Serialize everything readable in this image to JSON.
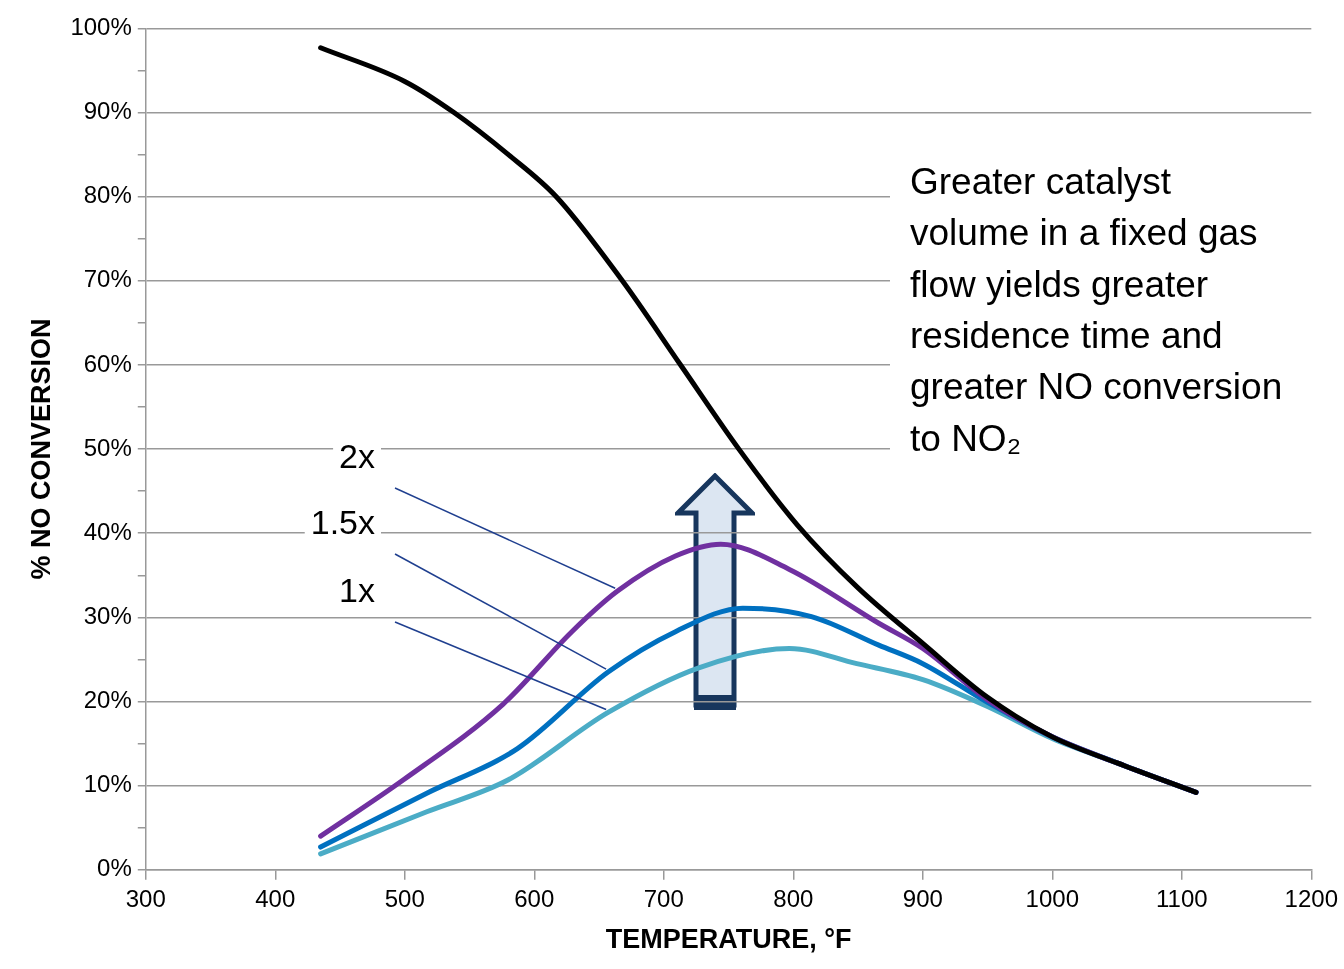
{
  "chart_data": {
    "type": "line",
    "xlabel": "TEMPERATURE, °F",
    "ylabel": "% NO CONVERSION",
    "annotations": [
      "Greater catalyst volume in a fixed gas flow yields greater residence time and greater NO conversion to NO₂"
    ],
    "series": [
      {
        "color": "#000000",
        "x": [
          435,
          500,
          538,
          580,
          617,
          668,
          713,
          758,
          803,
          850,
          900,
          950,
          1000,
          1050,
          1111
        ],
        "values": [
          97.7,
          93.7,
          90,
          85,
          80,
          70,
          60,
          50,
          41,
          33.5,
          26.9,
          20.5,
          15.8,
          12.7,
          9.2
        ]
      },
      {
        "name": "2x",
        "color": "#7030a0",
        "x": [
          435,
          499,
          576,
          629,
          664,
          709,
          744,
          797,
          866,
          900,
          950,
          1000,
          1050,
          1111
        ],
        "values": [
          4.0,
          10.7,
          19.7,
          28.3,
          33.1,
          37.3,
          38.7,
          35.7,
          29.3,
          26.3,
          20.2,
          15.8,
          12.7,
          9.2
        ]
      },
      {
        "name": "1.5x",
        "color": "#0070c0",
        "x": [
          435,
          517,
          587,
          657,
          709,
          761,
          814,
          866,
          900,
          950,
          1000,
          1050,
          1111
        ],
        "values": [
          2.7,
          9.1,
          14.4,
          23.5,
          28.3,
          31.1,
          30.1,
          26.7,
          24.5,
          19.9,
          15.8,
          12.7,
          9.2
        ]
      },
      {
        "name": "1x",
        "color": "#4bacc6",
        "x": [
          435,
          517,
          580,
          657,
          727,
          797,
          849,
          900,
          950,
          1000,
          1050,
          1111
        ],
        "values": [
          1.9,
          6.9,
          10.7,
          18.7,
          24.0,
          26.3,
          24.5,
          22.6,
          19.4,
          15.6,
          12.7,
          9.2
        ]
      }
    ],
    "xlim": [
      300,
      1200
    ],
    "xticks": [
      300,
      400,
      500,
      600,
      700,
      800,
      900,
      1000,
      1100,
      1200
    ],
    "ylim": [
      0,
      100
    ],
    "yticks": [
      {
        "value": 0,
        "label": "0%"
      },
      {
        "value": 5,
        "label": null
      },
      {
        "value": 10,
        "label": "10%"
      },
      {
        "value": 15,
        "label": null
      },
      {
        "value": 20,
        "label": "20%"
      },
      {
        "value": 25,
        "label": null
      },
      {
        "value": 30,
        "label": "30%"
      },
      {
        "value": 35,
        "label": null
      },
      {
        "value": 40,
        "label": "40%"
      },
      {
        "value": 45,
        "label": null
      },
      {
        "value": 50,
        "label": "50%"
      },
      {
        "value": 55,
        "label": null
      },
      {
        "value": 60,
        "label": "60%"
      },
      {
        "value": 65,
        "label": null
      },
      {
        "value": 70,
        "label": "70%"
      },
      {
        "value": 75,
        "label": null
      },
      {
        "value": 80,
        "label": "80%"
      },
      {
        "value": 85,
        "label": null
      },
      {
        "value": 90,
        "label": "90%"
      },
      {
        "value": 95,
        "label": null
      },
      {
        "value": 100,
        "label": "100%"
      }
    ],
    "grid": "y",
    "legend": false,
    "marker": "none",
    "line_style": "solid"
  }
}
